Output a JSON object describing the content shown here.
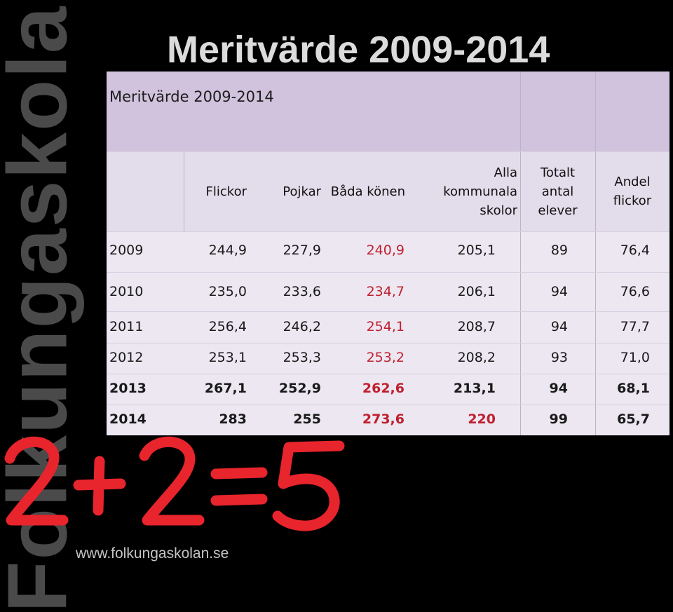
{
  "brand": {
    "vertical_text": "Folkungaskolan",
    "url": "www.folkungaskolan.se"
  },
  "slide_title": "Meritvärde 2009-2014",
  "table": {
    "caption": "Meritvärde 2009-2014",
    "headers": {
      "flickor": [
        "Flickor"
      ],
      "pojkar": [
        "Pojkar"
      ],
      "bada": [
        "Båda könen"
      ],
      "alla": [
        "Alla",
        "kommunala",
        "skolor"
      ],
      "totalt": [
        "Totalt",
        "antal",
        "elever"
      ],
      "andel": [
        "Andel",
        "flickor"
      ]
    },
    "rows": [
      {
        "year": "2009",
        "flickor": "244,9",
        "pojkar": "227,9",
        "bada": "240,9",
        "alla": "205,1",
        "totalt": "89",
        "andel": "76,4"
      },
      {
        "year": "2010",
        "flickor": "235,0",
        "pojkar": "233,6",
        "bada": "234,7",
        "alla": "206,1",
        "totalt": "94",
        "andel": "76,6"
      },
      {
        "year": "2011",
        "flickor": "256,4",
        "pojkar": "246,2",
        "bada": "254,1",
        "alla": "208,7",
        "totalt": "94",
        "andel": "77,7"
      },
      {
        "year": "2012",
        "flickor": "253,1",
        "pojkar": "253,3",
        "bada": "253,2",
        "alla": "208,2",
        "totalt": "93",
        "andel": "71,0"
      },
      {
        "year": "2013",
        "flickor": "267,1",
        "pojkar": "252,9",
        "bada": "262,6",
        "alla": "213,1",
        "totalt": "94",
        "andel": "68,1"
      },
      {
        "year": "2014",
        "flickor": "283",
        "pojkar": "255",
        "bada": "273,6",
        "alla": "220",
        "totalt": "99",
        "andel": "65,7"
      }
    ]
  },
  "equation": {
    "text": "2+2=5",
    "color": "#e8242c"
  },
  "colors": {
    "background": "#000000",
    "header_band": "#d1c3dd",
    "table_body": "#ece7f1",
    "highlight_red": "#c0202f"
  }
}
